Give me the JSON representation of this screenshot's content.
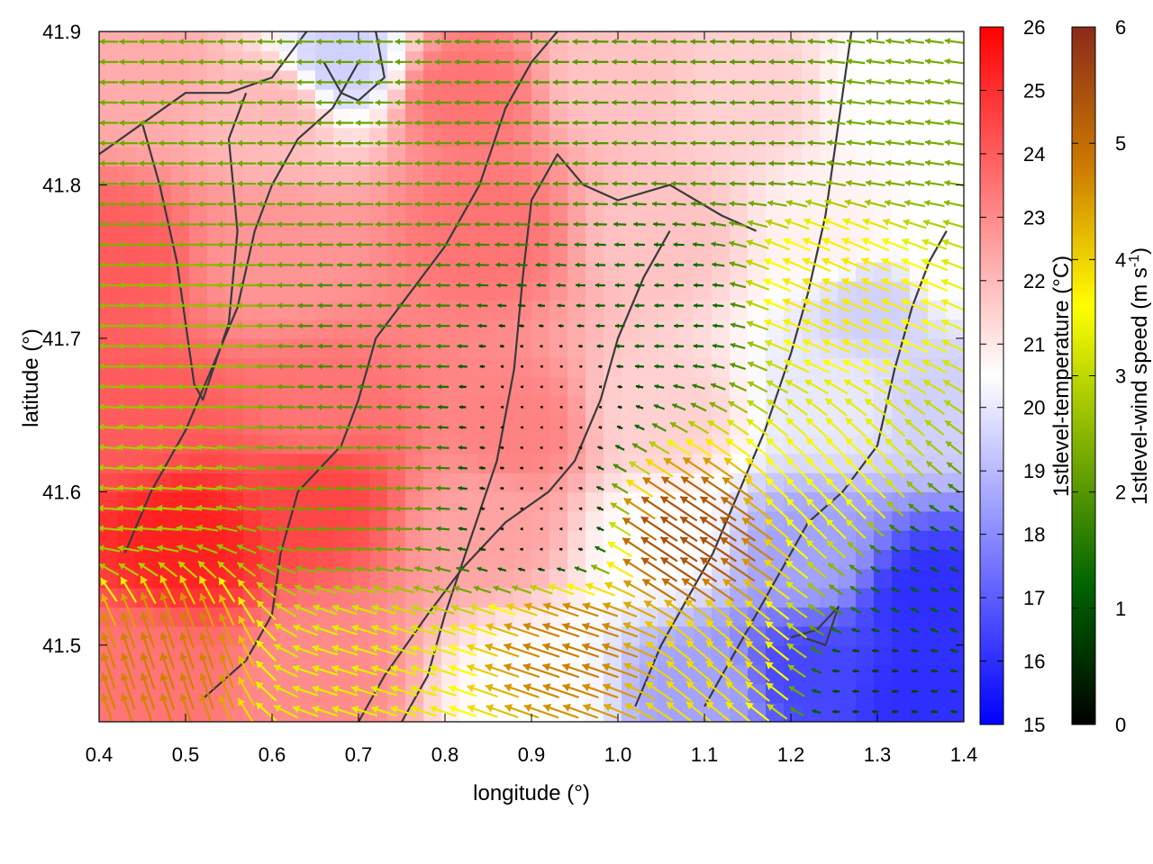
{
  "chart_data": {
    "type": "heatmap",
    "title": "",
    "xlabel": "longitude (°)",
    "ylabel": "latitude (°)",
    "xlim": [
      0.4,
      1.4
    ],
    "ylim": [
      41.45,
      41.9
    ],
    "x_ticks": [
      "0.4",
      "0.5",
      "0.6",
      "0.7",
      "0.8",
      "0.9",
      "1.0",
      "1.1",
      "1.2",
      "1.3",
      "1.4"
    ],
    "y_ticks": [
      "41.5",
      "41.6",
      "41.7",
      "41.8",
      "41.9"
    ],
    "grid": false,
    "colorbars": [
      {
        "label": "1stlevel-temperature (°C)",
        "range": [
          15,
          26
        ],
        "ticks": [
          "15",
          "16",
          "17",
          "18",
          "19",
          "20",
          "21",
          "22",
          "23",
          "24",
          "25",
          "26"
        ],
        "colors": [
          "#0000ff",
          "#ffffff",
          "#ff0000"
        ]
      },
      {
        "label_prefix": "1stlevel-wind speed (m s",
        "label_sup": "-1",
        "label_suffix": ")",
        "range": [
          0,
          6
        ],
        "ticks": [
          "0",
          "1",
          "2",
          "3",
          "4",
          "5",
          "6"
        ],
        "colors": [
          "#000000",
          "#006400",
          "#7fb000",
          "#ffff00",
          "#cc7a00",
          "#8b2a1a"
        ]
      }
    ],
    "temperature_anchors": [
      {
        "lon": 0.45,
        "lat": 41.87,
        "t": 22.3
      },
      {
        "lon": 0.6,
        "lat": 41.85,
        "t": 22.0
      },
      {
        "lon": 0.82,
        "lat": 41.86,
        "t": 23.5
      },
      {
        "lon": 1.0,
        "lat": 41.87,
        "t": 21.8
      },
      {
        "lon": 1.15,
        "lat": 41.86,
        "t": 21.5
      },
      {
        "lon": 1.32,
        "lat": 41.86,
        "t": 20.5
      },
      {
        "lon": 0.68,
        "lat": 41.88,
        "t": 19.5
      },
      {
        "lon": 0.42,
        "lat": 41.75,
        "t": 24.0
      },
      {
        "lon": 0.6,
        "lat": 41.75,
        "t": 22.8
      },
      {
        "lon": 0.85,
        "lat": 41.77,
        "t": 23.5
      },
      {
        "lon": 1.05,
        "lat": 41.77,
        "t": 21.8
      },
      {
        "lon": 1.25,
        "lat": 41.77,
        "t": 20.8
      },
      {
        "lon": 1.38,
        "lat": 41.75,
        "t": 20.5
      },
      {
        "lon": 0.45,
        "lat": 41.65,
        "t": 24.0
      },
      {
        "lon": 0.65,
        "lat": 41.65,
        "t": 23.5
      },
      {
        "lon": 0.88,
        "lat": 41.64,
        "t": 23.2
      },
      {
        "lon": 1.05,
        "lat": 41.65,
        "t": 21.5
      },
      {
        "lon": 1.25,
        "lat": 41.66,
        "t": 20.0
      },
      {
        "lon": 1.38,
        "lat": 41.66,
        "t": 19.5
      },
      {
        "lon": 0.5,
        "lat": 41.57,
        "t": 25.3
      },
      {
        "lon": 0.65,
        "lat": 41.6,
        "t": 24.5
      },
      {
        "lon": 0.85,
        "lat": 41.58,
        "t": 22.5
      },
      {
        "lon": 1.05,
        "lat": 41.57,
        "t": 20.5
      },
      {
        "lon": 1.22,
        "lat": 41.56,
        "t": 18.5
      },
      {
        "lon": 1.36,
        "lat": 41.53,
        "t": 16.0
      },
      {
        "lon": 0.45,
        "lat": 41.48,
        "t": 23.5
      },
      {
        "lon": 0.65,
        "lat": 41.48,
        "t": 23.0
      },
      {
        "lon": 0.9,
        "lat": 41.47,
        "t": 20.5
      },
      {
        "lon": 1.1,
        "lat": 41.47,
        "t": 18.5
      },
      {
        "lon": 1.22,
        "lat": 41.48,
        "t": 16.5
      },
      {
        "lon": 1.35,
        "lat": 41.47,
        "t": 16.0
      },
      {
        "lon": 1.3,
        "lat": 41.72,
        "t": 19.5
      }
    ],
    "wind_anchors": [
      {
        "lon": 0.5,
        "lat": 41.82,
        "u": -2.3,
        "v": 0.0
      },
      {
        "lon": 0.7,
        "lat": 41.82,
        "u": -2.2,
        "v": 0.0
      },
      {
        "lon": 0.92,
        "lat": 41.83,
        "u": -2.0,
        "v": 0.0
      },
      {
        "lon": 1.15,
        "lat": 41.84,
        "u": -2.0,
        "v": 0.0
      },
      {
        "lon": 1.32,
        "lat": 41.84,
        "u": -2.3,
        "v": 0.3
      },
      {
        "lon": 0.5,
        "lat": 41.7,
        "u": -2.6,
        "v": 0.0
      },
      {
        "lon": 0.72,
        "lat": 41.7,
        "u": -1.8,
        "v": 0.0
      },
      {
        "lon": 0.92,
        "lat": 41.66,
        "u": -0.2,
        "v": 0.0
      },
      {
        "lon": 1.05,
        "lat": 41.72,
        "u": -1.2,
        "v": 0.0
      },
      {
        "lon": 1.25,
        "lat": 41.73,
        "u": -3.5,
        "v": 1.5
      },
      {
        "lon": 0.45,
        "lat": 41.6,
        "u": -2.8,
        "v": 0.2
      },
      {
        "lon": 0.7,
        "lat": 41.6,
        "u": -2.2,
        "v": 0.0
      },
      {
        "lon": 0.92,
        "lat": 41.58,
        "u": -0.3,
        "v": 0.0
      },
      {
        "lon": 1.08,
        "lat": 41.57,
        "u": -4.5,
        "v": 3.0
      },
      {
        "lon": 1.25,
        "lat": 41.6,
        "u": -2.5,
        "v": 2.5
      },
      {
        "lon": 1.36,
        "lat": 41.55,
        "u": -1.0,
        "v": 0.5
      },
      {
        "lon": 0.48,
        "lat": 41.49,
        "u": -1.5,
        "v": 4.5
      },
      {
        "lon": 0.7,
        "lat": 41.48,
        "u": -3.2,
        "v": 1.0
      },
      {
        "lon": 0.95,
        "lat": 41.5,
        "u": -4.5,
        "v": 1.5
      },
      {
        "lon": 1.12,
        "lat": 41.49,
        "u": -3.0,
        "v": 2.5
      },
      {
        "lon": 1.3,
        "lat": 41.47,
        "u": -0.8,
        "v": 0.0
      }
    ],
    "contours": [
      [
        [
          0.52,
          41.465
        ],
        [
          0.57,
          41.49
        ],
        [
          0.6,
          41.52
        ],
        [
          0.61,
          41.56
        ],
        [
          0.63,
          41.6
        ],
        [
          0.68,
          41.63
        ],
        [
          0.7,
          41.66
        ],
        [
          0.72,
          41.7
        ],
        [
          0.76,
          41.73
        ],
        [
          0.8,
          41.76
        ],
        [
          0.84,
          41.8
        ],
        [
          0.87,
          41.85
        ],
        [
          0.9,
          41.88
        ],
        [
          0.93,
          41.9
        ]
      ],
      [
        [
          0.43,
          41.56
        ],
        [
          0.46,
          41.6
        ],
        [
          0.5,
          41.64
        ],
        [
          0.53,
          41.68
        ],
        [
          0.56,
          41.72
        ],
        [
          0.58,
          41.77
        ],
        [
          0.6,
          41.8
        ],
        [
          0.63,
          41.83
        ],
        [
          0.67,
          41.85
        ],
        [
          0.7,
          41.88
        ]
      ],
      [
        [
          0.4,
          41.82
        ],
        [
          0.45,
          41.84
        ],
        [
          0.5,
          41.86
        ],
        [
          0.55,
          41.86
        ],
        [
          0.6,
          41.87
        ],
        [
          0.64,
          41.9
        ]
      ],
      [
        [
          0.45,
          41.84
        ],
        [
          0.47,
          41.8
        ],
        [
          0.49,
          41.75
        ],
        [
          0.5,
          41.71
        ],
        [
          0.51,
          41.67
        ],
        [
          0.52,
          41.66
        ],
        [
          0.55,
          41.71
        ],
        [
          0.56,
          41.77
        ],
        [
          0.55,
          41.83
        ],
        [
          0.57,
          41.86
        ]
      ],
      [
        [
          0.75,
          41.45
        ],
        [
          0.78,
          41.48
        ],
        [
          0.8,
          41.52
        ],
        [
          0.83,
          41.57
        ],
        [
          0.86,
          41.62
        ],
        [
          0.88,
          41.68
        ],
        [
          0.89,
          41.74
        ],
        [
          0.9,
          41.79
        ],
        [
          0.93,
          41.82
        ],
        [
          0.96,
          41.8
        ],
        [
          1.0,
          41.79
        ],
        [
          1.06,
          41.8
        ],
        [
          1.12,
          41.78
        ],
        [
          1.16,
          41.77
        ]
      ],
      [
        [
          0.7,
          41.45
        ],
        [
          0.73,
          41.48
        ],
        [
          0.78,
          41.52
        ],
        [
          0.82,
          41.55
        ],
        [
          0.87,
          41.58
        ],
        [
          0.92,
          41.6
        ],
        [
          0.95,
          41.62
        ],
        [
          0.98,
          41.66
        ],
        [
          1.0,
          41.7
        ],
        [
          1.03,
          41.74
        ],
        [
          1.06,
          41.77
        ]
      ],
      [
        [
          1.02,
          41.46
        ],
        [
          1.05,
          41.5
        ],
        [
          1.08,
          41.53
        ],
        [
          1.11,
          41.56
        ],
        [
          1.14,
          41.6
        ],
        [
          1.17,
          41.64
        ],
        [
          1.2,
          41.69
        ],
        [
          1.22,
          41.73
        ],
        [
          1.24,
          41.78
        ],
        [
          1.25,
          41.82
        ],
        [
          1.26,
          41.86
        ],
        [
          1.27,
          41.9
        ]
      ],
      [
        [
          1.1,
          41.46
        ],
        [
          1.14,
          41.5
        ],
        [
          1.18,
          41.54
        ],
        [
          1.22,
          41.58
        ],
        [
          1.26,
          41.6
        ],
        [
          1.3,
          41.63
        ],
        [
          1.32,
          41.68
        ],
        [
          1.34,
          41.72
        ],
        [
          1.36,
          41.75
        ],
        [
          1.38,
          41.77
        ]
      ],
      [
        [
          1.2,
          41.505
        ],
        [
          1.23,
          41.51
        ],
        [
          1.255,
          41.525
        ],
        [
          1.24,
          41.5
        ],
        [
          1.215,
          41.505
        ]
      ],
      [
        [
          0.66,
          41.88
        ],
        [
          0.68,
          41.86
        ],
        [
          0.7,
          41.855
        ],
        [
          0.73,
          41.87
        ],
        [
          0.72,
          41.9
        ]
      ]
    ]
  }
}
